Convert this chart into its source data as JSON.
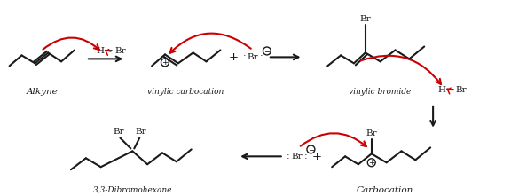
{
  "background": "#ffffff",
  "fig_width": 5.76,
  "fig_height": 2.21,
  "dpi": 100,
  "line_color": "#1a1a1a",
  "arrow_color": "#cc0000",
  "label_fontsize": 7.5,
  "small_fontsize": 6.5,
  "structure_linewidth": 1.5,
  "alkyne_label": "Alkyne",
  "vc_label": "vinylic carbocation",
  "vb_label": "vinylic bromide",
  "carbo_label": "Carbocation",
  "product_label": "3,3-Dibromohexane"
}
